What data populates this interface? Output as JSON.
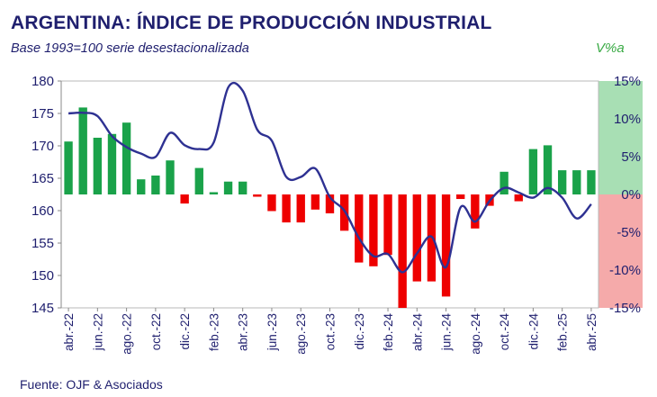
{
  "header": {
    "title": "ARGENTINA: ÍNDICE DE PRODUCCIÓN INDUSTRIAL",
    "subtitle": "Base 1993=100 serie desestacionalizada",
    "right_axis_label": "V%a"
  },
  "footer": {
    "source": "Fuente: OJF & Asociados"
  },
  "chart_data": {
    "type": "bar+line",
    "title": "ARGENTINA: ÍNDICE DE PRODUCCIÓN INDUSTRIAL",
    "subtitle": "Base 1993=100 serie desestacionalizada",
    "categories": [
      "abr.-22",
      "may.-22",
      "jun.-22",
      "jul.-22",
      "ago.-22",
      "sep.-22",
      "oct.-22",
      "nov.-22",
      "dic.-22",
      "ene.-23",
      "feb.-23",
      "mar.-23",
      "abr.-23",
      "may.-23",
      "jun.-23",
      "jul.-23",
      "ago.-23",
      "sep.-23",
      "oct.-23",
      "nov.-23",
      "dic.-23",
      "ene.-24",
      "feb.-24",
      "mar.-24",
      "abr.-24",
      "may.-24",
      "jun.-24",
      "jul.-24",
      "ago.-24",
      "sep.-24",
      "oct.-24",
      "nov.-24",
      "dic.-24",
      "ene.-25",
      "feb.-25",
      "mar.-25",
      "abr.-25"
    ],
    "x_tick_labels": [
      "abr.-22",
      "jun.-22",
      "ago.-22",
      "oct.-22",
      "dic.-22",
      "feb.-23",
      "abr.-23",
      "jun.-23",
      "ago.-23",
      "oct.-23",
      "dic.-23",
      "feb.-24",
      "abr.-24",
      "jun.-24",
      "ago.-24",
      "oct.-24",
      "dic.-24",
      "feb.-25",
      "abr.-25"
    ],
    "bars": {
      "axis": "right",
      "unit": "%",
      "values": [
        7.0,
        11.5,
        7.5,
        8.0,
        9.5,
        2.0,
        2.5,
        4.5,
        -1.2,
        3.5,
        0.3,
        1.7,
        1.7,
        -0.3,
        -2.2,
        -3.7,
        -3.7,
        -2.0,
        -2.5,
        -4.8,
        -9.0,
        -9.5,
        -8.0,
        -15.0,
        -11.5,
        -11.5,
        -13.5,
        -0.6,
        -4.5,
        -1.5,
        3.0,
        -0.9,
        6.0,
        6.5,
        3.2,
        3.2,
        3.2
      ],
      "positive_color": "#1aa24a",
      "negative_color": "#ee0000"
    },
    "line": {
      "axis": "left",
      "color": "#2e3192",
      "values": [
        175.0,
        175.1,
        174.6,
        171.5,
        169.8,
        168.8,
        168.3,
        172.0,
        170.1,
        169.5,
        170.5,
        179.0,
        178.5,
        172.5,
        170.8,
        165.2,
        165.2,
        166.5,
        162.1,
        160.0,
        155.8,
        153.0,
        153.3,
        150.5,
        153.4,
        156.0,
        151.3,
        160.5,
        158.3,
        161.5,
        163.5,
        162.8,
        162.0,
        163.5,
        162.0,
        158.8,
        161.0
      ]
    },
    "y_left": {
      "min": 145,
      "max": 180,
      "ticks": [
        "145",
        "150",
        "155",
        "160",
        "165",
        "170",
        "175",
        "180"
      ]
    },
    "y_right": {
      "min": -15,
      "max": 15,
      "ticks": [
        "-15%",
        "-10%",
        "-5%",
        "0%",
        "5%",
        "10%",
        "15%"
      ],
      "positive_band_color": "#a8dfb4",
      "negative_band_color": "#f5aaaa"
    },
    "grid": false,
    "legend": "none"
  }
}
